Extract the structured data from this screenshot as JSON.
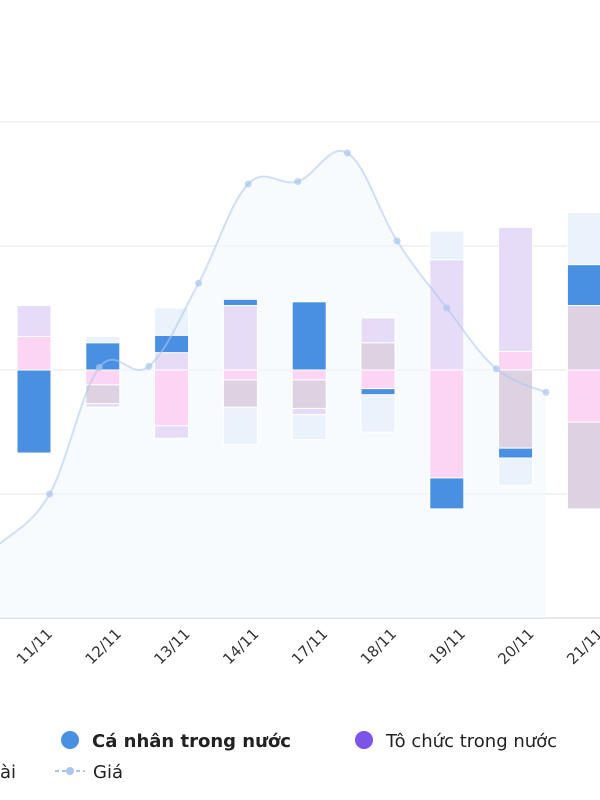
{
  "chart_data": {
    "type": "bar",
    "stacked": true,
    "categories": [
      "11/11",
      "12/11",
      "13/11",
      "14/11",
      "17/11",
      "18/11",
      "19/11",
      "20/11",
      "21/11"
    ],
    "legend": {
      "items": [
        {
          "label": "Cá nhân trong nước",
          "color": "#4a90e2",
          "bold": true
        },
        {
          "label": "Tô chức trong nước",
          "color": "#7b55e8",
          "bold": false
        },
        {
          "label": "ài",
          "color": "#f2f6fc",
          "bold": false
        },
        {
          "label": "Giá",
          "color": "#a9c6ee",
          "bold": false
        }
      ]
    },
    "colors": {
      "blue": "#4a90e2",
      "pink": "#fcd4f4",
      "lavender": "#e6dcf8",
      "mauve": "#dcd2e2",
      "light_blue": "#eaf2fc",
      "price": "#a9c6ee"
    },
    "y_range": [
      -200,
      200
    ],
    "stacks": [
      {
        "up": [
          [
            "pink",
            27
          ],
          [
            "lavender",
            25
          ]
        ],
        "down": [
          [
            "blue",
            67
          ]
        ]
      },
      {
        "up": [
          [
            "blue",
            22
          ],
          [
            "light_blue",
            5
          ]
        ],
        "down": [
          [
            "pink",
            12
          ],
          [
            "mauve",
            15
          ],
          [
            "lavender",
            3
          ]
        ]
      },
      {
        "up": [
          [
            "lavender",
            14
          ],
          [
            "blue",
            14
          ],
          [
            "light_blue",
            22
          ]
        ],
        "down": [
          [
            "pink",
            45
          ],
          [
            "lavender",
            10
          ]
        ]
      },
      {
        "up": [
          [
            "lavender",
            52
          ],
          [
            "blue",
            5
          ]
        ],
        "down": [
          [
            "pink",
            8
          ],
          [
            "mauve",
            22
          ],
          [
            "light_blue",
            30
          ]
        ]
      },
      {
        "up": [
          [
            "blue",
            55
          ]
        ],
        "down": [
          [
            "pink",
            8
          ],
          [
            "mauve",
            23
          ],
          [
            "lavender",
            5
          ],
          [
            "light_blue",
            20
          ]
        ]
      },
      {
        "up": [
          [
            "mauve",
            22
          ],
          [
            "lavender",
            20
          ]
        ],
        "down": [
          [
            "pink",
            15
          ],
          [
            "blue",
            5
          ],
          [
            "light_blue",
            30
          ]
        ]
      },
      {
        "up": [
          [
            "lavender",
            89
          ],
          [
            "light_blue",
            23
          ]
        ],
        "down": [
          [
            "pink",
            87
          ],
          [
            "blue",
            25
          ]
        ]
      },
      {
        "up": [
          [
            "pink",
            15
          ],
          [
            "lavender",
            100
          ]
        ],
        "down": [
          [
            "mauve",
            63
          ],
          [
            "blue",
            8
          ],
          [
            "light_blue",
            22
          ]
        ]
      },
      {
        "up": [
          [
            "mauve",
            52
          ],
          [
            "blue",
            33
          ],
          [
            "light_blue",
            42
          ]
        ],
        "down": [
          [
            "pink",
            42
          ],
          [
            "mauve",
            70
          ]
        ]
      }
    ],
    "price": [
      -140,
      -100,
      2,
      3,
      70,
      150,
      152,
      175,
      104,
      50,
      1,
      -18
    ]
  }
}
